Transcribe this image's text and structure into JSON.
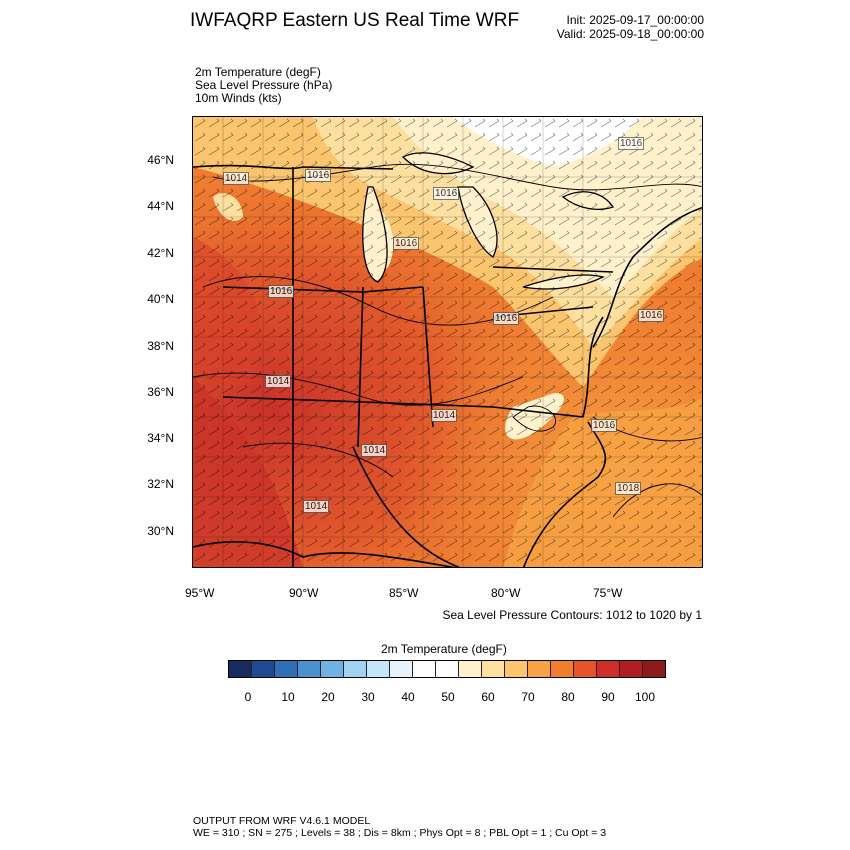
{
  "header": {
    "title": "IWFAQRP Eastern US Real Time WRF",
    "init": "Init: 2025-09-17_00:00:00",
    "valid": "Valid: 2025-09-18_00:00:00"
  },
  "fields": [
    "2m Temperature   (degF)",
    "Sea Level Pressure   (hPa)",
    "10m Winds   (kts)"
  ],
  "axes": {
    "lat_labels": [
      "46°N",
      "44°N",
      "42°N",
      "40°N",
      "38°N",
      "36°N",
      "34°N",
      "32°N",
      "30°N"
    ],
    "lon_labels": [
      "95°W",
      "90°W",
      "85°W",
      "80°W",
      "75°W"
    ]
  },
  "pressure_labels": [
    "1014",
    "1016",
    "1016",
    "1016",
    "1016",
    "1014",
    "1016",
    "1014",
    "1014",
    "1014",
    "1016",
    "1016",
    "1016",
    "1018"
  ],
  "contour_note": "Sea Level Pressure Contours: 1012 to 1020 by 1",
  "colorbar": {
    "title": "2m Temperature  (degF)",
    "labels": [
      "0",
      "10",
      "20",
      "30",
      "40",
      "50",
      "60",
      "70",
      "80",
      "90",
      "100"
    ],
    "colors": [
      "#182b5c",
      "#1f4a8f",
      "#2f6fb8",
      "#4a91cf",
      "#6eb3e3",
      "#9fd3f2",
      "#c5e6f8",
      "#e6f3fb",
      "#ffffff",
      "#ffffff",
      "#fff1cc",
      "#fde0a0",
      "#fbc46e",
      "#f7a244",
      "#f27e2c",
      "#e6552a",
      "#cf2f28",
      "#b01d22",
      "#8e1a1a"
    ]
  },
  "footer": {
    "line1": "OUTPUT FROM WRF V4.6.1 MODEL",
    "line2": "WE = 310 ; SN = 275 ; Levels = 38 ; Dis = 8km ; Phys Opt = 8 ; PBL Opt = 1 ; Cu Opt = 3"
  }
}
